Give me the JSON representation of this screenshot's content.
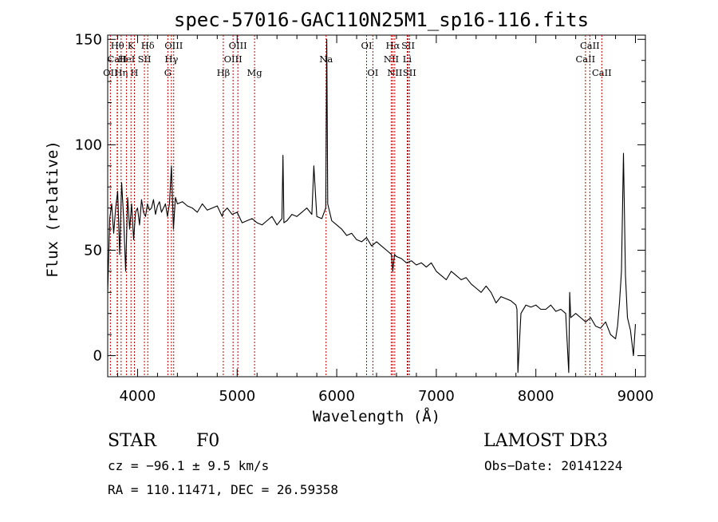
{
  "chart_data": {
    "type": "line",
    "title": "spec-57016-GAC110N25M1_sp16-116.fits",
    "xlabel": "Wavelength (Å)",
    "ylabel": "Flux (relative)",
    "xlim": [
      3700,
      9100
    ],
    "ylim": [
      -10,
      152
    ],
    "x_ticks": [
      4000,
      5000,
      6000,
      7000,
      8000,
      9000
    ],
    "y_ticks": [
      0,
      50,
      100,
      150
    ],
    "grid": false,
    "series": [
      {
        "name": "spectrum",
        "x": [
          3700,
          3720,
          3740,
          3760,
          3780,
          3800,
          3820,
          3840,
          3860,
          3880,
          3900,
          3920,
          3940,
          3960,
          3980,
          4000,
          4020,
          4040,
          4060,
          4080,
          4100,
          4120,
          4140,
          4160,
          4180,
          4200,
          4220,
          4240,
          4260,
          4280,
          4300,
          4320,
          4340,
          4360,
          4380,
          4400,
          4450,
          4500,
          4550,
          4600,
          4650,
          4700,
          4750,
          4800,
          4850,
          4860,
          4900,
          4950,
          5000,
          5050,
          5100,
          5150,
          5200,
          5250,
          5300,
          5350,
          5400,
          5450,
          5460,
          5470,
          5500,
          5550,
          5600,
          5650,
          5700,
          5750,
          5770,
          5800,
          5850,
          5890,
          5900,
          5910,
          5950,
          6000,
          6050,
          6100,
          6150,
          6200,
          6250,
          6300,
          6350,
          6400,
          6450,
          6500,
          6550,
          6563,
          6580,
          6600,
          6650,
          6700,
          6750,
          6800,
          6850,
          6900,
          6950,
          7000,
          7050,
          7100,
          7150,
          7200,
          7250,
          7300,
          7350,
          7400,
          7450,
          7500,
          7550,
          7600,
          7650,
          7700,
          7750,
          7800,
          7810,
          7820,
          7850,
          7900,
          7950,
          8000,
          8050,
          8100,
          8150,
          8200,
          8250,
          8300,
          8330,
          8340,
          8350,
          8400,
          8450,
          8500,
          8550,
          8600,
          8650,
          8700,
          8750,
          8800,
          8820,
          8840,
          8860,
          8880,
          8900,
          8920,
          8950,
          8980,
          9000
        ],
        "values": [
          30,
          65,
          72,
          58,
          70,
          78,
          48,
          82,
          65,
          40,
          75,
          60,
          72,
          55,
          68,
          70,
          62,
          74,
          68,
          66,
          72,
          69,
          70,
          74,
          67,
          71,
          73,
          68,
          70,
          72,
          66,
          72,
          90,
          60,
          75,
          72,
          73,
          71,
          70,
          68,
          72,
          69,
          70,
          71,
          66,
          68,
          70,
          67,
          68,
          63,
          64,
          65,
          63,
          62,
          64,
          66,
          62,
          65,
          95,
          63,
          64,
          67,
          66,
          68,
          70,
          67,
          90,
          66,
          65,
          70,
          150,
          72,
          64,
          62,
          60,
          57,
          58,
          55,
          54,
          56,
          52,
          54,
          52,
          50,
          48,
          40,
          48,
          47,
          46,
          44,
          45,
          43,
          44,
          42,
          44,
          40,
          38,
          36,
          40,
          38,
          36,
          37,
          34,
          32,
          30,
          33,
          30,
          25,
          28,
          27,
          26,
          24,
          22,
          -8,
          20,
          24,
          23,
          24,
          22,
          22,
          24,
          21,
          22,
          20,
          -8,
          30,
          18,
          20,
          18,
          16,
          18,
          14,
          13,
          16,
          10,
          8,
          14,
          25,
          40,
          96,
          38,
          18,
          12,
          0,
          15
        ]
      }
    ],
    "lines": [
      {
        "label": "OII",
        "x": 3727,
        "row": 2
      },
      {
        "label": "CaII",
        "x": 3795,
        "row": 1
      },
      {
        "label": "Hθ",
        "x": 3798,
        "row": 0
      },
      {
        "label": "Hη",
        "x": 3835,
        "row": 2
      },
      {
        "label": "HeI",
        "x": 3889,
        "row": 1
      },
      {
        "label": "K",
        "x": 3934,
        "row": 0
      },
      {
        "label": "H",
        "x": 3968,
        "row": 2
      },
      {
        "label": "SII",
        "x": 4069,
        "row": 1
      },
      {
        "label": "Hδ",
        "x": 4102,
        "row": 0
      },
      {
        "label": "G",
        "x": 4304,
        "row": 2
      },
      {
        "label": "Hγ",
        "x": 4340,
        "row": 1
      },
      {
        "label": "OIII",
        "x": 4363,
        "row": 0
      },
      {
        "label": "Hβ",
        "x": 4861,
        "row": 2
      },
      {
        "label": "OIII",
        "x": 4959,
        "row": 1
      },
      {
        "label": "OIII",
        "x": 5007,
        "row": 0
      },
      {
        "label": "Mg",
        "x": 5175,
        "row": 2
      },
      {
        "label": "Na",
        "x": 5893,
        "row": 1
      },
      {
        "label": "OI",
        "x": 6300,
        "row": 0
      },
      {
        "label": "OI",
        "x": 6363,
        "row": 2
      },
      {
        "label": "NII",
        "x": 6548,
        "row": 1
      },
      {
        "label": "Hα",
        "x": 6563,
        "row": 0
      },
      {
        "label": "NII",
        "x": 6583,
        "row": 2
      },
      {
        "label": "Li",
        "x": 6708,
        "row": 1
      },
      {
        "label": "SII",
        "x": 6717,
        "row": 0
      },
      {
        "label": "SII",
        "x": 6731,
        "row": 2
      },
      {
        "label": "CaII",
        "x": 8498,
        "row": 1
      },
      {
        "label": "CaII",
        "x": 8542,
        "row": 0
      },
      {
        "label": "CaII",
        "x": 8662,
        "row": 2
      }
    ],
    "line_color": "#c00000",
    "annotations": {
      "type_label": "STAR",
      "subclass": "F0",
      "survey": "LAMOST DR3",
      "cz": "cz = −96.1 ± 9.5 km/s",
      "obs_date": "Obs−Date: 20141224",
      "coords": "RA = 110.11471, DEC =  26.59358"
    }
  }
}
